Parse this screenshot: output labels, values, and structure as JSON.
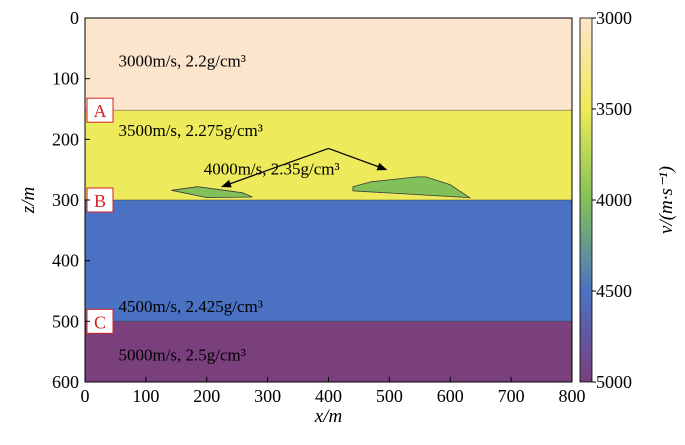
{
  "chart_data": {
    "type": "heatmap",
    "title": "",
    "xlabel": "x/m",
    "ylabel": "z/m",
    "xlim": [
      0,
      800
    ],
    "ylim": [
      0,
      600
    ],
    "x_inverted": false,
    "y_inverted": true,
    "x_ticks": [
      "0",
      "100",
      "200",
      "300",
      "400",
      "500",
      "600",
      "700",
      "800"
    ],
    "y_ticks": [
      "0",
      "100",
      "200",
      "300",
      "400",
      "500",
      "600"
    ],
    "layers": [
      {
        "label": "3000m/s, 2.2g/cm³",
        "velocity": 3000,
        "density": 2.2,
        "z_top": 0,
        "z_bottom": 152,
        "color": "#fbe5cc",
        "label_x": 55,
        "label_z": 70
      },
      {
        "label": "3500m/s, 2.275g/cm³",
        "velocity": 3500,
        "density": 2.275,
        "z_top": 152,
        "z_bottom": 300,
        "color": "#edeb5b",
        "label_x": 55,
        "label_z": 185
      },
      {
        "label": "4500m/s, 2.425g/cm³",
        "velocity": 4500,
        "density": 2.425,
        "z_top": 300,
        "z_bottom": 500,
        "color": "#4b72c2",
        "label_x": 55,
        "label_z": 475
      },
      {
        "label": "5000m/s, 2.5g/cm³",
        "velocity": 5000,
        "density": 2.5,
        "z_top": 500,
        "z_bottom": 600,
        "color": "#7a3f7d",
        "label_x": 55,
        "label_z": 555
      }
    ],
    "bodies": {
      "label": "4000m/s, 2.35g/cm³",
      "label_x": 195,
      "label_z": 248,
      "velocity": 4000,
      "density": 2.35,
      "color": "#82c05a",
      "polygons": [
        [
          [
            142,
            284
          ],
          [
            185,
            278
          ],
          [
            258,
            288
          ],
          [
            275,
            295
          ],
          [
            200,
            296
          ]
        ],
        [
          [
            440,
            278
          ],
          [
            470,
            270
          ],
          [
            545,
            262
          ],
          [
            560,
            262
          ],
          [
            600,
            275
          ],
          [
            632,
            296
          ],
          [
            440,
            285
          ]
        ]
      ],
      "arrow_apex": [
        400,
        215
      ],
      "arrow_targets": [
        [
          225,
          278
        ],
        [
          495,
          250
        ]
      ]
    },
    "boundaries": [
      {
        "name": "A",
        "z": 152
      },
      {
        "name": "B",
        "z": 300
      },
      {
        "name": "C",
        "z": 500
      }
    ],
    "colorbar": {
      "label": "v/(m·s⁻¹)",
      "min": 3000,
      "max": 5000,
      "ticks": [
        "3000",
        "3500",
        "4000",
        "4500",
        "5000"
      ],
      "colors": [
        "#fbe5cc",
        "#edeb5b",
        "#82c05a",
        "#4b72c2",
        "#7a3f7d"
      ],
      "stops": [
        0,
        0.25,
        0.5,
        0.75,
        1
      ]
    }
  }
}
